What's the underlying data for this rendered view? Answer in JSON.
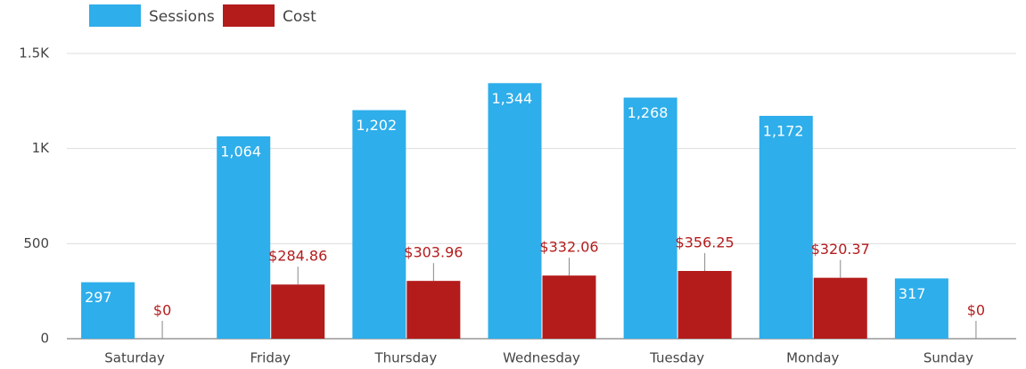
{
  "chart_data": {
    "type": "bar",
    "categories": [
      "Saturday",
      "Friday",
      "Thursday",
      "Wednesday",
      "Tuesday",
      "Monday",
      "Sunday"
    ],
    "series": [
      {
        "name": "Sessions",
        "color": "#2eaeea",
        "values": [
          297,
          1064,
          1202,
          1344,
          1268,
          1172,
          317
        ],
        "value_labels": [
          "297",
          "1,064",
          "1,202",
          "1,344",
          "1,268",
          "1,172",
          "317"
        ]
      },
      {
        "name": "Cost",
        "color": "#b41c1c",
        "values": [
          0,
          284.86,
          303.96,
          332.06,
          356.25,
          320.37,
          0
        ],
        "value_labels": [
          "$0",
          "$284.86",
          "$303.96",
          "$332.06",
          "$356.25",
          "$320.37",
          "$0"
        ]
      }
    ],
    "ylim": [
      0,
      1500
    ],
    "yticks": [
      0,
      500,
      {
        "value": 1000,
        "label": "1K"
      },
      {
        "value": 1500,
        "label": "1.5K"
      }
    ],
    "grid": true,
    "legend": "top-left"
  }
}
